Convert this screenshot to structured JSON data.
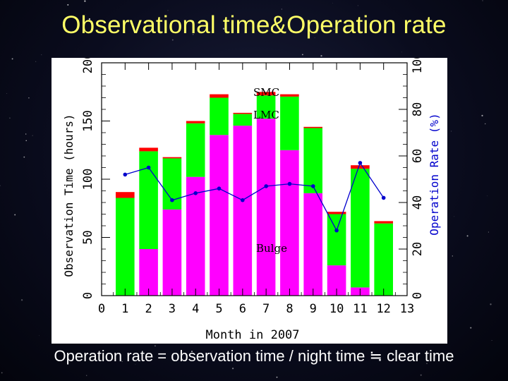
{
  "slide": {
    "title": "Observational time&Operation rate",
    "footer": "Operation rate = observation time / night time ≒ clear time"
  },
  "colors": {
    "background": "#0a0c1e",
    "title": "#ffff66",
    "bulge": "#ff00ff",
    "lmc": "#00ff00",
    "smc": "#ff0000",
    "operation_rate": "#0000cc"
  },
  "chart_data": {
    "type": "bar",
    "stacked": true,
    "xlabel": "Month in 2007",
    "ylabel": "Observation Time (hours)",
    "y2label": "Operation Rate (%)",
    "xlim": [
      0,
      13
    ],
    "ylim": [
      0,
      200
    ],
    "y2lim": [
      0,
      100
    ],
    "xticks": [
      "0",
      "1",
      "2",
      "3",
      "4",
      "5",
      "6",
      "7",
      "8",
      "9",
      "10",
      "11",
      "12",
      "13"
    ],
    "yticks": [
      "0",
      "50",
      "100",
      "150",
      "200"
    ],
    "y2ticks": [
      "0",
      "20",
      "40",
      "60",
      "80",
      "100"
    ],
    "categories": [
      1,
      2,
      3,
      4,
      5,
      6,
      7,
      8,
      9,
      10,
      11,
      12
    ],
    "series": [
      {
        "name": "Bulge",
        "color": "#ff00ff",
        "values": [
          0,
          40,
          74,
          102,
          138,
          146,
          152,
          125,
          88,
          26,
          7,
          0
        ]
      },
      {
        "name": "LMC",
        "color": "#00ff00",
        "values": [
          84,
          84,
          44,
          46,
          32,
          10,
          20,
          46,
          56,
          44,
          102,
          62
        ]
      },
      {
        "name": "SMC",
        "color": "#ff0000",
        "values": [
          5,
          3,
          1,
          2,
          3,
          1,
          3,
          2,
          1,
          2,
          3,
          2
        ]
      }
    ],
    "line_series": {
      "name": "Operation Rate",
      "axis": "right",
      "color": "#0000cc",
      "values": [
        52,
        55,
        41,
        44,
        46,
        41,
        47,
        48,
        47,
        28,
        57,
        42
      ]
    },
    "annotations": [
      {
        "text": "SMC",
        "series": "SMC"
      },
      {
        "text": "LMC",
        "series": "LMC"
      },
      {
        "text": "Bulge",
        "series": "Bulge"
      }
    ],
    "grid": false,
    "legend": "none"
  }
}
